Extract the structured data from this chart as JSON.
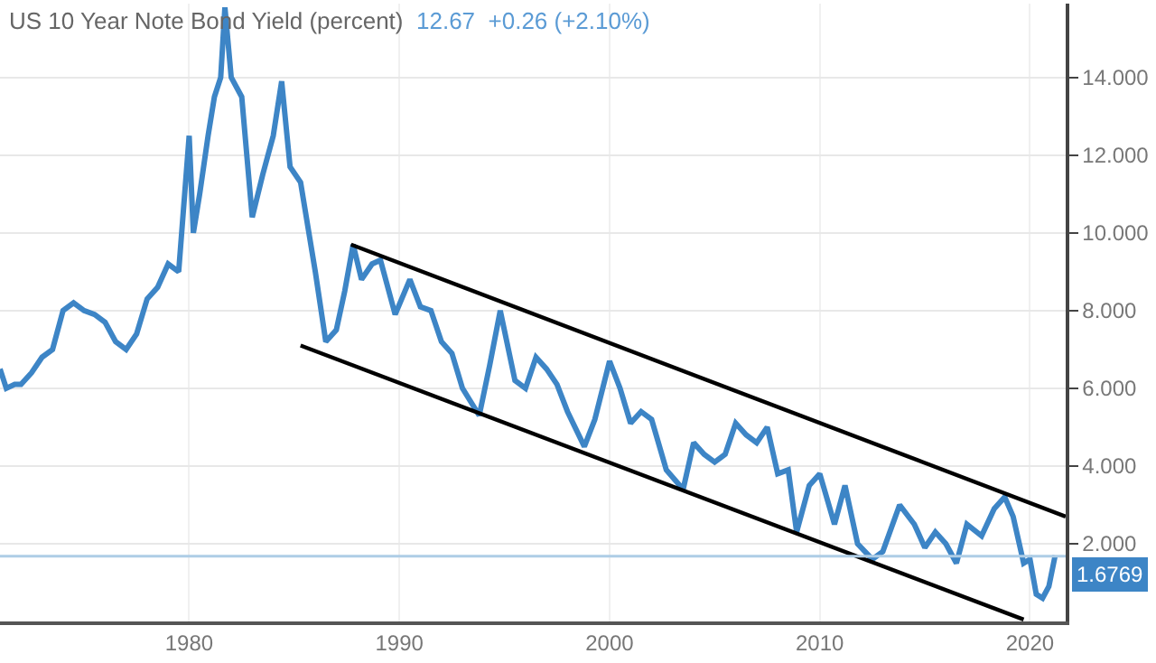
{
  "chart_data": {
    "type": "line",
    "title": "US 10 Year Note Bond Yield (percent)",
    "subtitle": "12.67  +0.26 (+2.10%)",
    "xlim": [
      1971,
      2021.7
    ],
    "xticks": [
      1980,
      1990,
      2000,
      2010,
      2020
    ],
    "ylim": [
      0,
      15.9
    ],
    "yticks": [
      {
        "value": 2,
        "label": "2.000"
      },
      {
        "value": 4,
        "label": "4.000"
      },
      {
        "value": 6,
        "label": "6.000"
      },
      {
        "value": 8,
        "label": "8.000"
      },
      {
        "value": 10,
        "label": "10.000"
      },
      {
        "value": 12,
        "label": "12.000"
      },
      {
        "value": 14,
        "label": "14.000"
      }
    ],
    "grid": true,
    "series": [
      {
        "color": "#3d85c6",
        "x": [
          1971.0,
          1971.3,
          1971.7,
          1972.0,
          1972.5,
          1973.0,
          1973.5,
          1974.0,
          1974.5,
          1975.0,
          1975.5,
          1976.0,
          1976.5,
          1977.0,
          1977.5,
          1978.0,
          1978.5,
          1979.0,
          1979.5,
          1980.0,
          1980.2,
          1980.5,
          1980.9,
          1981.2,
          1981.5,
          1981.7,
          1982.0,
          1982.5,
          1983.0,
          1983.5,
          1984.0,
          1984.4,
          1984.8,
          1985.3,
          1986.0,
          1986.5,
          1987.0,
          1987.4,
          1987.8,
          1988.2,
          1988.7,
          1989.1,
          1989.8,
          1990.5,
          1991.0,
          1991.5,
          1992.0,
          1992.5,
          1993.0,
          1993.8,
          1994.3,
          1994.8,
          1995.5,
          1996.0,
          1996.5,
          1997.0,
          1997.5,
          1998.0,
          1998.8,
          1999.3,
          2000.0,
          2000.5,
          2001.0,
          2001.5,
          2002.0,
          2002.7,
          2003.5,
          2004.0,
          2004.5,
          2005.0,
          2005.5,
          2006.0,
          2006.5,
          2007.0,
          2007.5,
          2008.0,
          2008.5,
          2008.9,
          2009.5,
          2010.0,
          2010.7,
          2011.2,
          2011.8,
          2012.5,
          2013.0,
          2013.8,
          2014.5,
          2015.0,
          2015.5,
          2016.0,
          2016.5,
          2017.0,
          2017.7,
          2018.3,
          2018.8,
          2019.2,
          2019.7,
          2020.0,
          2020.3,
          2020.6,
          2020.9,
          2021.2
        ],
        "values": [
          6.5,
          6.0,
          6.1,
          6.1,
          6.4,
          6.8,
          7.0,
          8.0,
          8.2,
          8.0,
          7.9,
          7.7,
          7.2,
          7.0,
          7.4,
          8.3,
          8.6,
          9.2,
          9.0,
          12.5,
          10.0,
          11.0,
          12.5,
          13.5,
          14.0,
          15.8,
          14.0,
          13.5,
          10.4,
          11.5,
          12.5,
          13.9,
          11.7,
          11.3,
          9.0,
          7.2,
          7.5,
          8.5,
          9.7,
          8.8,
          9.2,
          9.3,
          7.9,
          8.8,
          8.1,
          8.0,
          7.2,
          6.9,
          6.0,
          5.3,
          6.6,
          8.0,
          6.2,
          6.0,
          6.8,
          6.5,
          6.1,
          5.4,
          4.5,
          5.2,
          6.7,
          6.0,
          5.1,
          5.4,
          5.2,
          3.9,
          3.4,
          4.6,
          4.3,
          4.1,
          4.3,
          5.1,
          4.8,
          4.6,
          5.0,
          3.8,
          3.9,
          2.3,
          3.5,
          3.8,
          2.5,
          3.5,
          2.0,
          1.6,
          1.8,
          3.0,
          2.5,
          1.9,
          2.3,
          2.0,
          1.5,
          2.5,
          2.2,
          2.9,
          3.2,
          2.7,
          1.5,
          1.6,
          0.7,
          0.6,
          0.9,
          1.7
        ]
      },
      {
        "color": "#000000",
        "x": [
          1987.7,
          2021.7
        ],
        "values": [
          9.7,
          2.7
        ]
      },
      {
        "color": "#000000",
        "x": [
          1985.3,
          2019.7
        ],
        "values": [
          7.1,
          0.05
        ]
      }
    ],
    "ref_lines": [
      {
        "axis": "y",
        "value": 1.6769,
        "label": "1.6769",
        "color": "#aecde6"
      }
    ]
  }
}
